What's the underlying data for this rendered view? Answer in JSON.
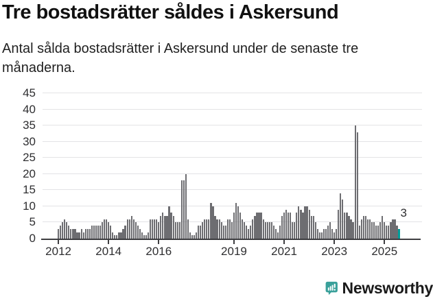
{
  "header": {
    "title": "Tre bostadsrätter såldes i Askersund",
    "subtitle": "Antal sålda bostadsrätter i Askersund under de senaste tre månaderna."
  },
  "colors": {
    "bar_gray": "#6d6d71",
    "accent_teal": "#009e9a",
    "grid": "#e3e3e5",
    "axis": "#3d3d40",
    "logo_teal": "#39a09a"
  },
  "chart_data": {
    "type": "bar",
    "title": "Tre bostadsrätter såldes i Askersund",
    "subtitle": "Antal sålda bostadsrätter i Askersund under de senaste tre månaderna.",
    "frequency": "monthly",
    "start_month": "2012-01",
    "end_month": "2025-08",
    "grid": "horizontal",
    "legend": "none",
    "ylim": [
      0,
      45
    ],
    "yticks": [
      0,
      5,
      10,
      15,
      20,
      25,
      30,
      35,
      40,
      45
    ],
    "xticks": [
      {
        "label": "2012",
        "month_index": 0
      },
      {
        "label": "2014",
        "month_index": 24
      },
      {
        "label": "2016",
        "month_index": 48
      },
      {
        "label": "2019",
        "month_index": 84
      },
      {
        "label": "2021",
        "month_index": 108
      },
      {
        "label": "2023",
        "month_index": 132
      },
      {
        "label": "2025",
        "month_index": 156
      }
    ],
    "values": [
      3,
      4,
      5,
      6,
      5,
      4,
      3,
      3,
      3,
      2,
      2,
      3,
      2,
      3,
      3,
      3,
      4,
      4,
      4,
      4,
      4,
      5,
      6,
      6,
      5,
      4,
      2,
      1,
      1,
      2,
      2,
      3,
      4,
      6,
      6,
      7,
      6,
      5,
      4,
      3,
      2,
      1,
      1,
      2,
      6,
      6,
      6,
      6,
      5,
      7,
      8,
      7,
      7,
      10,
      8,
      7,
      5,
      5,
      5,
      18,
      18,
      20,
      6,
      2,
      1,
      1,
      2,
      4,
      4,
      5,
      6,
      6,
      6,
      11,
      10,
      7,
      6,
      6,
      5,
      4,
      4,
      6,
      6,
      5,
      8,
      11,
      10,
      8,
      6,
      5,
      4,
      3,
      4,
      6,
      7,
      8,
      8,
      8,
      6,
      5,
      5,
      5,
      5,
      4,
      3,
      2,
      4,
      7,
      8,
      9,
      8,
      8,
      5,
      5,
      8,
      10,
      9,
      8,
      10,
      10,
      9,
      7,
      7,
      5,
      3,
      2,
      2,
      3,
      3,
      4,
      5,
      3,
      2,
      3,
      9,
      14,
      12,
      8,
      8,
      7,
      6,
      5,
      35,
      33,
      4,
      6,
      7,
      7,
      6,
      6,
      5,
      5,
      4,
      4,
      5,
      7,
      5,
      4,
      4,
      5,
      6,
      6,
      4,
      3
    ],
    "highlight": {
      "index": 163,
      "value": 3,
      "label": "3",
      "color": "#009e9a"
    },
    "bar_color": "#6d6d71"
  },
  "footer": {
    "brand": "Newsworthy"
  }
}
